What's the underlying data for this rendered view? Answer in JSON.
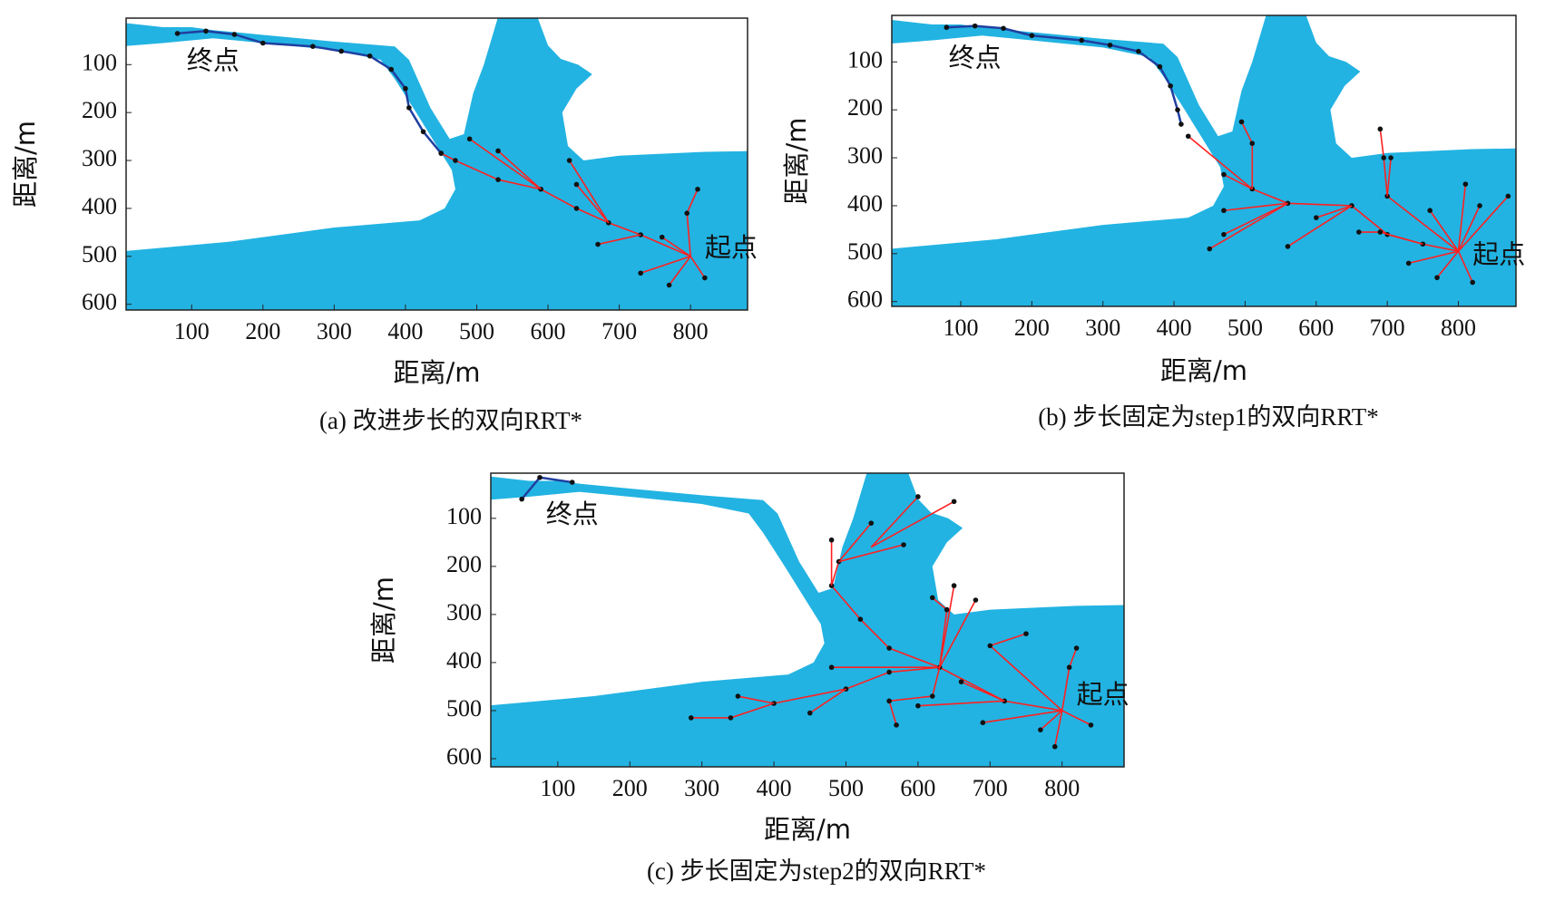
{
  "chart_data": [
    {
      "type": "tree",
      "caption": "(a) 改进步长的双向RRT*",
      "xlabel": "距离/m",
      "ylabel": "距离/m",
      "annotations": [
        "终点",
        "起点"
      ],
      "xlim": [
        8,
        880
      ],
      "ylim": [
        3,
        612
      ],
      "xticks": [
        100,
        200,
        300,
        400,
        500,
        600,
        700,
        800
      ],
      "yticks": [
        100,
        200,
        300,
        400,
        500,
        600
      ],
      "series": [
        {
          "color": "#1f3fa0",
          "x": [
            80,
            120,
            160,
            200,
            270,
            310,
            350,
            380,
            400,
            405,
            425,
            450
          ],
          "y": [
            35,
            30,
            37,
            55,
            62,
            72,
            82,
            110,
            150,
            190,
            240,
            285
          ]
        },
        {
          "color": "#ff2020",
          "x": [
            800,
            730,
            685,
            640,
            590,
            530,
            470,
            450
          ],
          "y": [
            500,
            455,
            430,
            400,
            360,
            340,
            300,
            285
          ]
        },
        {
          "color": "#ff2020",
          "x": [
            590,
            490
          ],
          "y": [
            360,
            255
          ]
        },
        {
          "color": "#ff2020",
          "x": [
            590,
            530
          ],
          "y": [
            360,
            280
          ]
        },
        {
          "color": "#ff2020",
          "x": [
            685,
            630
          ],
          "y": [
            430,
            300
          ]
        },
        {
          "color": "#ff2020",
          "x": [
            685,
            640
          ],
          "y": [
            430,
            350
          ]
        },
        {
          "color": "#ff2020",
          "x": [
            730,
            670
          ],
          "y": [
            455,
            475
          ]
        },
        {
          "color": "#ff2020",
          "x": [
            800,
            795,
            810
          ],
          "y": [
            500,
            410,
            360
          ]
        },
        {
          "color": "#ff2020",
          "x": [
            800,
            760
          ],
          "y": [
            500,
            460
          ]
        },
        {
          "color": "#ff2020",
          "x": [
            800,
            730
          ],
          "y": [
            500,
            535
          ]
        },
        {
          "color": "#ff2020",
          "x": [
            800,
            770
          ],
          "y": [
            500,
            560
          ]
        },
        {
          "color": "#ff2020",
          "x": [
            800,
            820
          ],
          "y": [
            500,
            545
          ]
        }
      ]
    },
    {
      "type": "tree",
      "caption": "(b) 步长固定为step1的双向RRT*",
      "xlabel": "距离/m",
      "ylabel": "距离/m",
      "annotations": [
        "终点",
        "起点"
      ],
      "xlim": [
        3,
        881
      ],
      "ylim": [
        3,
        610
      ],
      "xticks": [
        100,
        200,
        300,
        400,
        500,
        600,
        700,
        800
      ],
      "yticks": [
        100,
        200,
        300,
        400,
        500,
        600
      ],
      "series": [
        {
          "color": "#1f3fa0",
          "x": [
            80,
            120,
            160,
            200,
            270,
            310,
            350,
            380,
            395,
            405,
            410
          ],
          "y": [
            28,
            25,
            30,
            45,
            55,
            65,
            78,
            110,
            150,
            200,
            230
          ]
        },
        {
          "color": "#ff2020",
          "x": [
            800,
            750,
            700,
            650,
            560,
            510,
            420
          ],
          "y": [
            495,
            480,
            460,
            400,
            395,
            365,
            255
          ]
        },
        {
          "color": "#ff2020",
          "x": [
            510,
            510,
            495
          ],
          "y": [
            365,
            270,
            225
          ]
        },
        {
          "color": "#ff2020",
          "x": [
            510,
            470
          ],
          "y": [
            365,
            335
          ]
        },
        {
          "color": "#ff2020",
          "x": [
            560,
            470
          ],
          "y": [
            395,
            460
          ]
        },
        {
          "color": "#ff2020",
          "x": [
            560,
            470
          ],
          "y": [
            395,
            410
          ]
        },
        {
          "color": "#ff2020",
          "x": [
            560,
            450
          ],
          "y": [
            395,
            490
          ]
        },
        {
          "color": "#ff2020",
          "x": [
            650,
            600
          ],
          "y": [
            400,
            425
          ]
        },
        {
          "color": "#ff2020",
          "x": [
            650,
            560
          ],
          "y": [
            400,
            485
          ]
        },
        {
          "color": "#ff2020",
          "x": [
            800,
            700,
            695,
            690
          ],
          "y": [
            495,
            380,
            300,
            240
          ]
        },
        {
          "color": "#ff2020",
          "x": [
            700,
            705
          ],
          "y": [
            380,
            300
          ]
        },
        {
          "color": "#ff2020",
          "x": [
            800,
            810
          ],
          "y": [
            495,
            355
          ]
        },
        {
          "color": "#ff2020",
          "x": [
            800,
            870
          ],
          "y": [
            495,
            380
          ]
        },
        {
          "color": "#ff2020",
          "x": [
            800,
            830
          ],
          "y": [
            495,
            400
          ]
        },
        {
          "color": "#ff2020",
          "x": [
            800,
            770
          ],
          "y": [
            495,
            550
          ]
        },
        {
          "color": "#ff2020",
          "x": [
            800,
            820
          ],
          "y": [
            495,
            560
          ]
        },
        {
          "color": "#ff2020",
          "x": [
            800,
            730
          ],
          "y": [
            495,
            520
          ]
        },
        {
          "color": "#ff2020",
          "x": [
            800,
            760
          ],
          "y": [
            495,
            410
          ]
        },
        {
          "color": "#ff2020",
          "x": [
            750,
            690,
            660
          ],
          "y": [
            480,
            455,
            455
          ]
        }
      ]
    },
    {
      "type": "tree",
      "caption": "(c) 步长固定为step2的双向RRT*",
      "xlabel": "距离/m",
      "ylabel": "距离/m",
      "annotations": [
        "终点",
        "起点"
      ],
      "xlim": [
        7,
        886
      ],
      "ylim": [
        6,
        617
      ],
      "xticks": [
        100,
        200,
        300,
        400,
        500,
        600,
        700,
        800
      ],
      "yticks": [
        100,
        200,
        300,
        400,
        500,
        600
      ],
      "series": [
        {
          "color": "#1f3fa0",
          "x": [
            50,
            75,
            120
          ],
          "y": [
            60,
            15,
            25
          ]
        },
        {
          "color": "#ff2020",
          "x": [
            800,
            720,
            630,
            560,
            520,
            480,
            490,
            535
          ],
          "y": [
            500,
            480,
            410,
            370,
            310,
            240,
            190,
            110
          ]
        },
        {
          "color": "#ff2020",
          "x": [
            480,
            480
          ],
          "y": [
            240,
            145
          ]
        },
        {
          "color": "#ff2020",
          "x": [
            490,
            580
          ],
          "y": [
            190,
            155
          ]
        },
        {
          "color": "#ff2020",
          "x": [
            535,
            600
          ],
          "y": [
            160,
            55
          ]
        },
        {
          "color": "#ff2020",
          "x": [
            535,
            650
          ],
          "y": [
            160,
            65
          ]
        },
        {
          "color": "#ff2020",
          "x": [
            630,
            640,
            620
          ],
          "y": [
            410,
            290,
            265
          ]
        },
        {
          "color": "#ff2020",
          "x": [
            630,
            650
          ],
          "y": [
            410,
            240
          ]
        },
        {
          "color": "#ff2020",
          "x": [
            630,
            680
          ],
          "y": [
            410,
            270
          ]
        },
        {
          "color": "#ff2020",
          "x": [
            630,
            560,
            500,
            400,
            340,
            285
          ],
          "y": [
            410,
            420,
            455,
            485,
            515,
            515
          ]
        },
        {
          "color": "#ff2020",
          "x": [
            400,
            350
          ],
          "y": [
            485,
            470
          ]
        },
        {
          "color": "#ff2020",
          "x": [
            500,
            450
          ],
          "y": [
            455,
            505
          ]
        },
        {
          "color": "#ff2020",
          "x": [
            630,
            620,
            560,
            570
          ],
          "y": [
            410,
            470,
            480,
            530
          ]
        },
        {
          "color": "#ff2020",
          "x": [
            630,
            480
          ],
          "y": [
            410,
            410
          ]
        },
        {
          "color": "#ff2020",
          "x": [
            800,
            810,
            820
          ],
          "y": [
            500,
            410,
            370
          ]
        },
        {
          "color": "#ff2020",
          "x": [
            800,
            700,
            750
          ],
          "y": [
            500,
            365,
            340
          ]
        },
        {
          "color": "#ff2020",
          "x": [
            800,
            790
          ],
          "y": [
            500,
            575
          ]
        },
        {
          "color": "#ff2020",
          "x": [
            800,
            770
          ],
          "y": [
            500,
            540
          ]
        },
        {
          "color": "#ff2020",
          "x": [
            800,
            840
          ],
          "y": [
            500,
            530
          ]
        },
        {
          "color": "#ff2020",
          "x": [
            800,
            690
          ],
          "y": [
            500,
            525
          ]
        },
        {
          "color": "#ff2020",
          "x": [
            720,
            660
          ],
          "y": [
            480,
            440
          ]
        },
        {
          "color": "#ff2020",
          "x": [
            720,
            600
          ],
          "y": [
            480,
            490
          ]
        }
      ]
    }
  ]
}
